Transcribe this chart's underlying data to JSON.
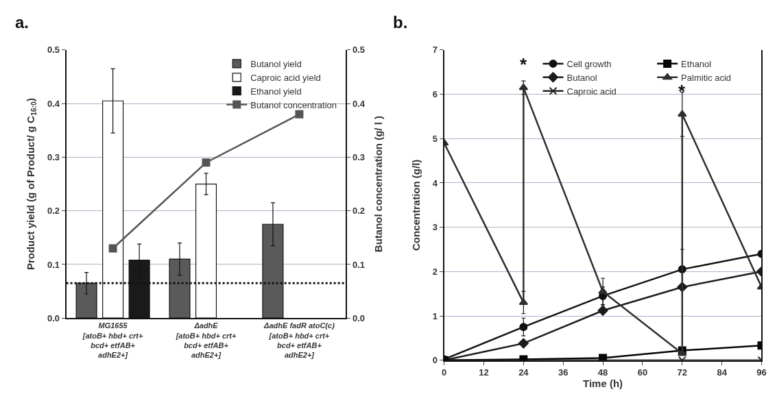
{
  "chart_data": [
    {
      "type": "bar",
      "title": "a.",
      "ylabel": "Product yield (g of Product/ g C$_{16:0}$)",
      "y2label": "Butanol concentration (g/ l )",
      "categories": [
        "MG1655\n[atoB+ hbd+ crt+\nbcd+ etfAB+\nadhE2+]",
        "ΔadhE\n[atoB+ hbd+ crt+\nbcd+ etfAB+\nadhE2+]",
        "ΔadhE fadR atoC(c)\n[atoB+ hbd+ crt+\nbcd+ etfAB+\nadhE2+]"
      ],
      "series": [
        {
          "name": "Butanol yield",
          "color": "#5a5a5a",
          "values": [
            0.065,
            0.11,
            0.175
          ],
          "errors": [
            0.02,
            0.03,
            0.04
          ]
        },
        {
          "name": "Caproic acid yield",
          "color": "#ffffff",
          "values": [
            0.405,
            0.25,
            null
          ],
          "errors": [
            0.06,
            0.02,
            null
          ]
        },
        {
          "name": "Ethanol yield",
          "color": "#1a1a1a",
          "values": [
            0.108,
            null,
            null
          ],
          "errors": [
            0.03,
            null,
            null
          ]
        },
        {
          "name": "Butanol concentration",
          "type": "line",
          "axis": "y2",
          "marker": "square",
          "color": "#555555",
          "values": [
            0.13,
            0.29,
            0.38
          ]
        }
      ],
      "ylim": [
        0,
        0.5
      ],
      "yticks": [
        {
          "value": 0,
          "label": "0.0"
        },
        0.1,
        0.2,
        0.3,
        0.4,
        0.5
      ],
      "y2lim": [
        0,
        0.5
      ],
      "y2ticks": [
        {
          "value": 0,
          "label": "0.0"
        },
        0.1,
        0.2,
        0.3,
        0.4,
        0.5
      ],
      "ref_lines": [
        {
          "axis": "y",
          "value": 0.065,
          "line_style": "dotted",
          "color": "#111111"
        }
      ],
      "grid": "y",
      "legend": "top right"
    },
    {
      "type": "line",
      "title": "b.",
      "xlabel": "Time (h)",
      "ylabel": "Concentration (g/l)",
      "series": [
        {
          "name": "Cell growth",
          "marker": "circle",
          "color": "#111111",
          "x": [
            0,
            24,
            48,
            72,
            96
          ],
          "values": [
            0.02,
            0.75,
            1.45,
            2.05,
            2.4
          ],
          "errors": [
            null,
            0.2,
            0.2,
            0.45,
            null
          ]
        },
        {
          "name": "Butanol",
          "marker": "diamond",
          "color": "#1c1c1c",
          "x": [
            0,
            24,
            48,
            72,
            96
          ],
          "values": [
            0,
            0.38,
            1.12,
            1.65,
            2.0
          ]
        },
        {
          "name": "Caproic acid",
          "marker": "cross",
          "color": "#262626",
          "x": [
            0,
            24,
            48,
            72,
            96
          ],
          "values": [
            0,
            0,
            0,
            0,
            0
          ]
        },
        {
          "name": "Ethanol",
          "marker": "square",
          "color": "#050505",
          "x": [
            0,
            24,
            48,
            72,
            96
          ],
          "values": [
            0,
            0.02,
            0.05,
            0.22,
            0.33
          ]
        },
        {
          "name": "Palmitic acid",
          "marker": "triangle",
          "color": "#2e2e2e",
          "x": [
            0,
            24,
            24,
            48,
            72,
            72,
            96
          ],
          "values": [
            4.9,
            1.3,
            6.15,
            1.55,
            0.15,
            5.55,
            1.65
          ],
          "errors": [
            null,
            0.25,
            0.15,
            0.3,
            null,
            0.5,
            null
          ]
        }
      ],
      "xlim": [
        0,
        96
      ],
      "xticks": [
        0,
        12,
        24,
        36,
        48,
        60,
        72,
        84,
        96
      ],
      "ylim": [
        0,
        7
      ],
      "yticks": [
        0,
        1,
        2,
        3,
        4,
        5,
        6,
        7
      ],
      "annotations": [
        {
          "text": "*",
          "x": 24,
          "y": 6.15
        },
        {
          "text": "*",
          "x": 72,
          "y": 5.55
        }
      ],
      "grid": "y",
      "legend": "top right"
    }
  ]
}
